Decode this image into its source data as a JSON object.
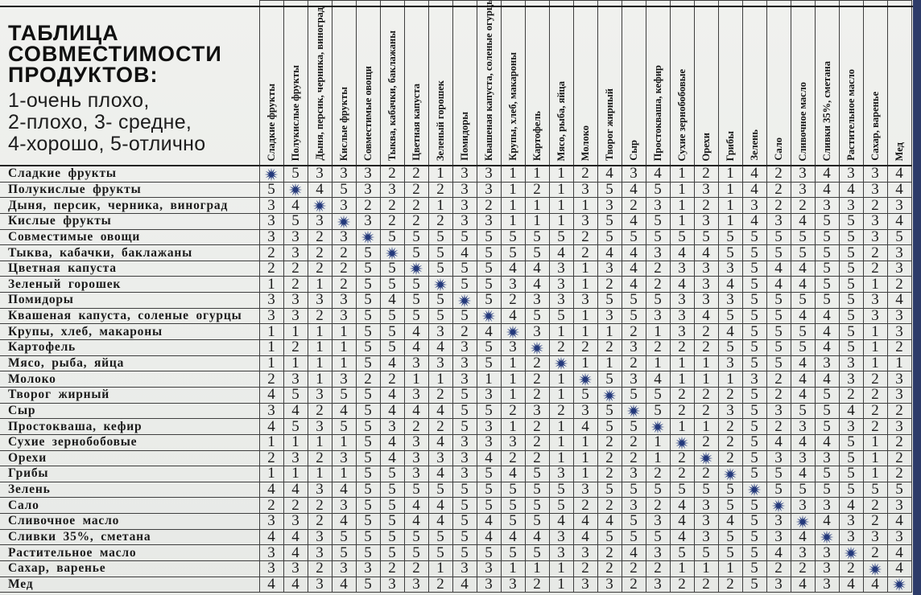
{
  "title": {
    "heading_lines": [
      "ТАБЛИЦА",
      "СОВМЕСТИМОСТИ",
      "ПРОДУКТОВ:"
    ],
    "legend_lines": [
      "1-очень плохо,",
      "2-плохо, 3- средне,",
      "4-хорошо, 5-отлично"
    ]
  },
  "colors": {
    "star": "#24397b",
    "edge_strip": "#2d3b69",
    "grid": "#3e3e3e",
    "background": "#edefec"
  },
  "chart_data": {
    "type": "table",
    "title": "ТАБЛИЦА СОВМЕСТИМОСТИ ПРОДУКТОВ",
    "scale_legend": "1-очень плохо, 2-плохо, 3- средне, 4-хорошо, 5-отлично",
    "diagonal_marker": "star",
    "columns": [
      "Сладкие фрукты",
      "Полукислые фрукты",
      "Дыня, персик, черника, виноград",
      "Кислые фрукты",
      "Совместимые овощи",
      "Тыква, кабачки, баклажаны",
      "Цветная капуста",
      "Зеленый горошек",
      "Помидоры",
      "Квашеная капуста, соленые огурцы",
      "Крупы, хлеб, макароны",
      "Картофель",
      "Мясо, рыба, яйца",
      "Молоко",
      "Творог жирный",
      "Сыр",
      "Простокваша, кефир",
      "Сухие зернобобовые",
      "Орехи",
      "Грибы",
      "Зелень",
      "Сало",
      "Сливочное масло",
      "Сливки 35%, сметана",
      "Растительное масло",
      "Сахар, варенье",
      "Мед"
    ],
    "rows": [
      {
        "label": "Сладкие фрукты",
        "values": [
          "*",
          5,
          3,
          3,
          3,
          2,
          2,
          1,
          3,
          3,
          1,
          1,
          1,
          2,
          4,
          3,
          4,
          1,
          2,
          1,
          4,
          2,
          3,
          4,
          3,
          3,
          4
        ]
      },
      {
        "label": "Полукислые фрукты",
        "values": [
          5,
          "*",
          4,
          5,
          3,
          3,
          2,
          2,
          3,
          3,
          1,
          2,
          1,
          3,
          5,
          4,
          5,
          1,
          3,
          1,
          4,
          2,
          3,
          4,
          4,
          3,
          4
        ]
      },
      {
        "label": "Дыня, персик, черника, виноград",
        "values": [
          3,
          4,
          "*",
          3,
          2,
          2,
          2,
          1,
          3,
          2,
          1,
          1,
          1,
          1,
          3,
          2,
          3,
          1,
          2,
          1,
          3,
          2,
          2,
          3,
          3,
          2,
          3
        ]
      },
      {
        "label": "Кислые фрукты",
        "values": [
          3,
          5,
          3,
          "*",
          3,
          2,
          2,
          2,
          3,
          3,
          1,
          1,
          1,
          3,
          5,
          4,
          5,
          1,
          3,
          1,
          4,
          3,
          4,
          5,
          5,
          3,
          4
        ]
      },
      {
        "label": "Совместимые овощи",
        "values": [
          3,
          3,
          2,
          3,
          "*",
          5,
          5,
          5,
          5,
          5,
          5,
          5,
          5,
          2,
          5,
          5,
          5,
          5,
          5,
          5,
          5,
          5,
          5,
          5,
          5,
          3,
          5
        ]
      },
      {
        "label": "Тыква, кабачки, баклажаны",
        "values": [
          2,
          3,
          2,
          2,
          5,
          "*",
          5,
          5,
          4,
          5,
          5,
          5,
          4,
          2,
          4,
          4,
          3,
          4,
          4,
          5,
          5,
          5,
          5,
          5,
          5,
          2,
          3
        ]
      },
      {
        "label": "Цветная капуста",
        "values": [
          2,
          2,
          2,
          2,
          5,
          5,
          "*",
          5,
          5,
          5,
          4,
          4,
          3,
          1,
          3,
          4,
          2,
          3,
          3,
          3,
          5,
          4,
          4,
          5,
          5,
          2,
          3
        ]
      },
      {
        "label": "Зеленый горошек",
        "values": [
          1,
          2,
          1,
          2,
          5,
          5,
          5,
          "*",
          5,
          5,
          3,
          4,
          3,
          1,
          2,
          4,
          2,
          4,
          3,
          4,
          5,
          4,
          4,
          5,
          5,
          1,
          2
        ]
      },
      {
        "label": "Помидоры",
        "values": [
          3,
          3,
          3,
          3,
          5,
          4,
          5,
          5,
          "*",
          5,
          2,
          3,
          3,
          3,
          5,
          5,
          5,
          3,
          3,
          3,
          5,
          5,
          5,
          5,
          5,
          3,
          4
        ]
      },
      {
        "label": "Квашеная капуста, соленые огурцы",
        "values": [
          3,
          3,
          2,
          3,
          5,
          5,
          5,
          5,
          5,
          "*",
          4,
          5,
          5,
          1,
          3,
          5,
          3,
          3,
          4,
          5,
          5,
          5,
          4,
          4,
          5,
          3,
          3
        ]
      },
      {
        "label": "Крупы, хлеб, макароны",
        "values": [
          1,
          1,
          1,
          1,
          5,
          5,
          4,
          3,
          2,
          4,
          "*",
          3,
          1,
          1,
          1,
          2,
          1,
          3,
          2,
          4,
          5,
          5,
          5,
          4,
          5,
          1,
          3
        ]
      },
      {
        "label": "Картофель",
        "values": [
          1,
          2,
          1,
          1,
          5,
          5,
          4,
          4,
          3,
          5,
          3,
          "*",
          2,
          2,
          2,
          3,
          2,
          2,
          2,
          5,
          5,
          5,
          5,
          4,
          5,
          1,
          2
        ]
      },
      {
        "label": "Мясо, рыба, яйца",
        "values": [
          1,
          1,
          1,
          1,
          5,
          4,
          3,
          3,
          3,
          5,
          1,
          2,
          "*",
          1,
          1,
          2,
          1,
          1,
          1,
          3,
          5,
          5,
          4,
          3,
          3,
          1,
          1
        ]
      },
      {
        "label": "Молоко",
        "values": [
          2,
          3,
          1,
          3,
          2,
          2,
          1,
          1,
          3,
          1,
          1,
          2,
          1,
          "*",
          5,
          3,
          4,
          1,
          1,
          1,
          3,
          2,
          4,
          4,
          3,
          2,
          3
        ]
      },
      {
        "label": "Творог жирный",
        "values": [
          4,
          5,
          3,
          5,
          5,
          4,
          3,
          2,
          5,
          3,
          1,
          2,
          1,
          5,
          "*",
          5,
          5,
          2,
          2,
          2,
          5,
          2,
          4,
          5,
          2,
          2,
          3
        ]
      },
      {
        "label": "Сыр",
        "values": [
          3,
          4,
          2,
          4,
          5,
          4,
          4,
          4,
          5,
          5,
          2,
          3,
          2,
          3,
          5,
          "*",
          5,
          2,
          2,
          3,
          5,
          3,
          5,
          5,
          4,
          2,
          2
        ]
      },
      {
        "label": "Простокваша, кефир",
        "values": [
          4,
          5,
          3,
          5,
          5,
          3,
          2,
          2,
          5,
          3,
          1,
          2,
          1,
          4,
          5,
          5,
          "*",
          1,
          1,
          2,
          5,
          2,
          3,
          5,
          3,
          2,
          3
        ]
      },
      {
        "label": "Сухие зернобобовые",
        "values": [
          1,
          1,
          1,
          1,
          5,
          4,
          3,
          4,
          3,
          3,
          3,
          2,
          1,
          1,
          2,
          2,
          1,
          "*",
          2,
          2,
          5,
          4,
          4,
          4,
          5,
          1,
          2
        ]
      },
      {
        "label": "Орехи",
        "values": [
          2,
          3,
          2,
          3,
          5,
          4,
          3,
          3,
          3,
          4,
          2,
          2,
          1,
          1,
          2,
          2,
          1,
          2,
          "*",
          2,
          5,
          3,
          3,
          3,
          5,
          1,
          2
        ]
      },
      {
        "label": "Грибы",
        "values": [
          1,
          1,
          1,
          1,
          5,
          5,
          3,
          4,
          3,
          5,
          4,
          5,
          3,
          1,
          2,
          3,
          2,
          2,
          2,
          "*",
          5,
          5,
          4,
          5,
          5,
          1,
          2
        ]
      },
      {
        "label": "Зелень",
        "values": [
          4,
          4,
          3,
          4,
          5,
          5,
          5,
          5,
          5,
          5,
          5,
          5,
          5,
          3,
          5,
          5,
          5,
          5,
          5,
          5,
          "*",
          5,
          5,
          5,
          5,
          5,
          5
        ]
      },
      {
        "label": "Сало",
        "values": [
          2,
          2,
          2,
          3,
          5,
          5,
          4,
          4,
          5,
          5,
          5,
          5,
          5,
          2,
          2,
          3,
          2,
          4,
          3,
          5,
          5,
          "*",
          3,
          3,
          4,
          2,
          3
        ]
      },
      {
        "label": "Сливочное масло",
        "values": [
          3,
          3,
          2,
          4,
          5,
          5,
          4,
          4,
          5,
          4,
          5,
          5,
          4,
          4,
          4,
          5,
          3,
          4,
          3,
          4,
          5,
          3,
          "*",
          4,
          3,
          2,
          4
        ]
      },
      {
        "label": "Сливки 35%, сметана",
        "values": [
          4,
          4,
          3,
          5,
          5,
          5,
          5,
          5,
          5,
          4,
          4,
          4,
          3,
          4,
          5,
          5,
          5,
          4,
          3,
          5,
          5,
          3,
          4,
          "*",
          3,
          3,
          3
        ]
      },
      {
        "label": "Растительное масло",
        "values": [
          3,
          4,
          3,
          5,
          5,
          5,
          5,
          5,
          5,
          5,
          5,
          5,
          3,
          3,
          2,
          4,
          3,
          5,
          5,
          5,
          5,
          4,
          3,
          3,
          "*",
          2,
          4
        ]
      },
      {
        "label": "Сахар, варенье",
        "values": [
          3,
          3,
          2,
          3,
          3,
          2,
          2,
          1,
          3,
          3,
          1,
          1,
          1,
          2,
          2,
          2,
          2,
          1,
          1,
          1,
          5,
          2,
          2,
          3,
          2,
          "*",
          4
        ]
      },
      {
        "label": "Мед",
        "values": [
          4,
          4,
          3,
          4,
          5,
          3,
          3,
          2,
          4,
          3,
          3,
          2,
          1,
          3,
          3,
          2,
          3,
          2,
          2,
          2,
          5,
          3,
          4,
          3,
          4,
          4,
          "*"
        ]
      }
    ]
  }
}
